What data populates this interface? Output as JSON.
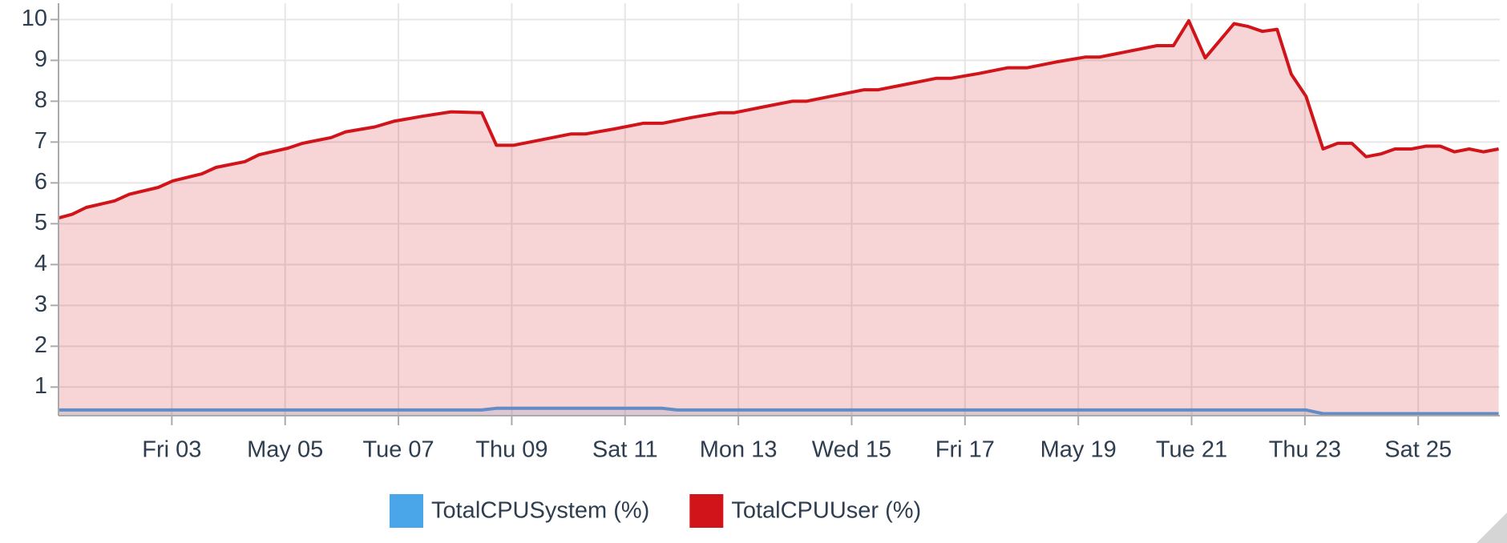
{
  "chart_data": {
    "type": "area",
    "xlim": [
      1,
      26.44
    ],
    "xticks": [
      {
        "value": 3,
        "label": "Fri 03"
      },
      {
        "value": 5,
        "label": "May 05"
      },
      {
        "value": 7,
        "label": "Tue 07"
      },
      {
        "value": 9,
        "label": "Thu 09"
      },
      {
        "value": 11,
        "label": "Sat 11"
      },
      {
        "value": 13,
        "label": "Mon 13"
      },
      {
        "value": 15,
        "label": "Wed 15"
      },
      {
        "value": 17,
        "label": "Fri 17"
      },
      {
        "value": 19,
        "label": "May 19"
      },
      {
        "value": 21,
        "label": "Tue 21"
      },
      {
        "value": 23,
        "label": "Thu 23"
      },
      {
        "value": 25,
        "label": "Sat 25"
      }
    ],
    "ylim": [
      0.3,
      10.4
    ],
    "yticks": [
      1,
      2,
      3,
      4,
      5,
      6,
      7,
      8,
      9,
      10
    ],
    "grid": true,
    "legend": "bottom",
    "series": [
      {
        "name": "TotalCPUSystem (%)",
        "color": "#4aa6e8",
        "x": [
          1,
          8.47,
          8.73,
          11.66,
          11.92,
          23.02,
          23.32,
          26.42
        ],
        "values": [
          0.44,
          0.44,
          0.48,
          0.48,
          0.44,
          0.44,
          0.35,
          0.35
        ]
      },
      {
        "name": "TotalCPUUser (%)",
        "color": "#d0141a",
        "x": [
          1,
          1.24,
          1.49,
          1.99,
          2.25,
          2.76,
          3.02,
          3.53,
          3.78,
          4.29,
          4.54,
          5.05,
          5.31,
          5.81,
          6.07,
          6.58,
          6.92,
          7.42,
          7.93,
          8.47,
          8.73,
          9.03,
          9.54,
          10.05,
          10.31,
          10.81,
          11.32,
          11.66,
          12.17,
          12.68,
          12.93,
          13.44,
          13.95,
          14.2,
          14.71,
          15.22,
          15.47,
          15.98,
          16.49,
          16.75,
          17.25,
          17.76,
          18.1,
          18.61,
          19.12,
          19.37,
          19.88,
          20.39,
          20.68,
          20.95,
          21.24,
          21.75,
          22.0,
          22.25,
          22.51,
          22.76,
          23.02,
          23.32,
          23.58,
          23.83,
          24.08,
          24.34,
          24.59,
          24.88,
          25.14,
          25.39,
          25.64,
          25.9,
          26.15,
          26.42
        ],
        "values": [
          5.14,
          5.23,
          5.4,
          5.56,
          5.72,
          5.89,
          6.05,
          6.22,
          6.38,
          6.52,
          6.69,
          6.85,
          6.97,
          7.11,
          7.25,
          7.37,
          7.51,
          7.63,
          7.74,
          7.72,
          6.92,
          6.92,
          7.06,
          7.2,
          7.2,
          7.32,
          7.46,
          7.46,
          7.6,
          7.72,
          7.72,
          7.86,
          8.0,
          8.0,
          8.14,
          8.28,
          8.28,
          8.42,
          8.56,
          8.56,
          8.68,
          8.82,
          8.82,
          8.96,
          9.08,
          9.08,
          9.22,
          9.36,
          9.36,
          9.97,
          9.06,
          9.9,
          9.83,
          9.71,
          9.76,
          8.66,
          8.12,
          6.83,
          6.97,
          6.97,
          6.64,
          6.71,
          6.83,
          6.83,
          6.9,
          6.9,
          6.76,
          6.83,
          6.76,
          6.83
        ]
      }
    ]
  }
}
